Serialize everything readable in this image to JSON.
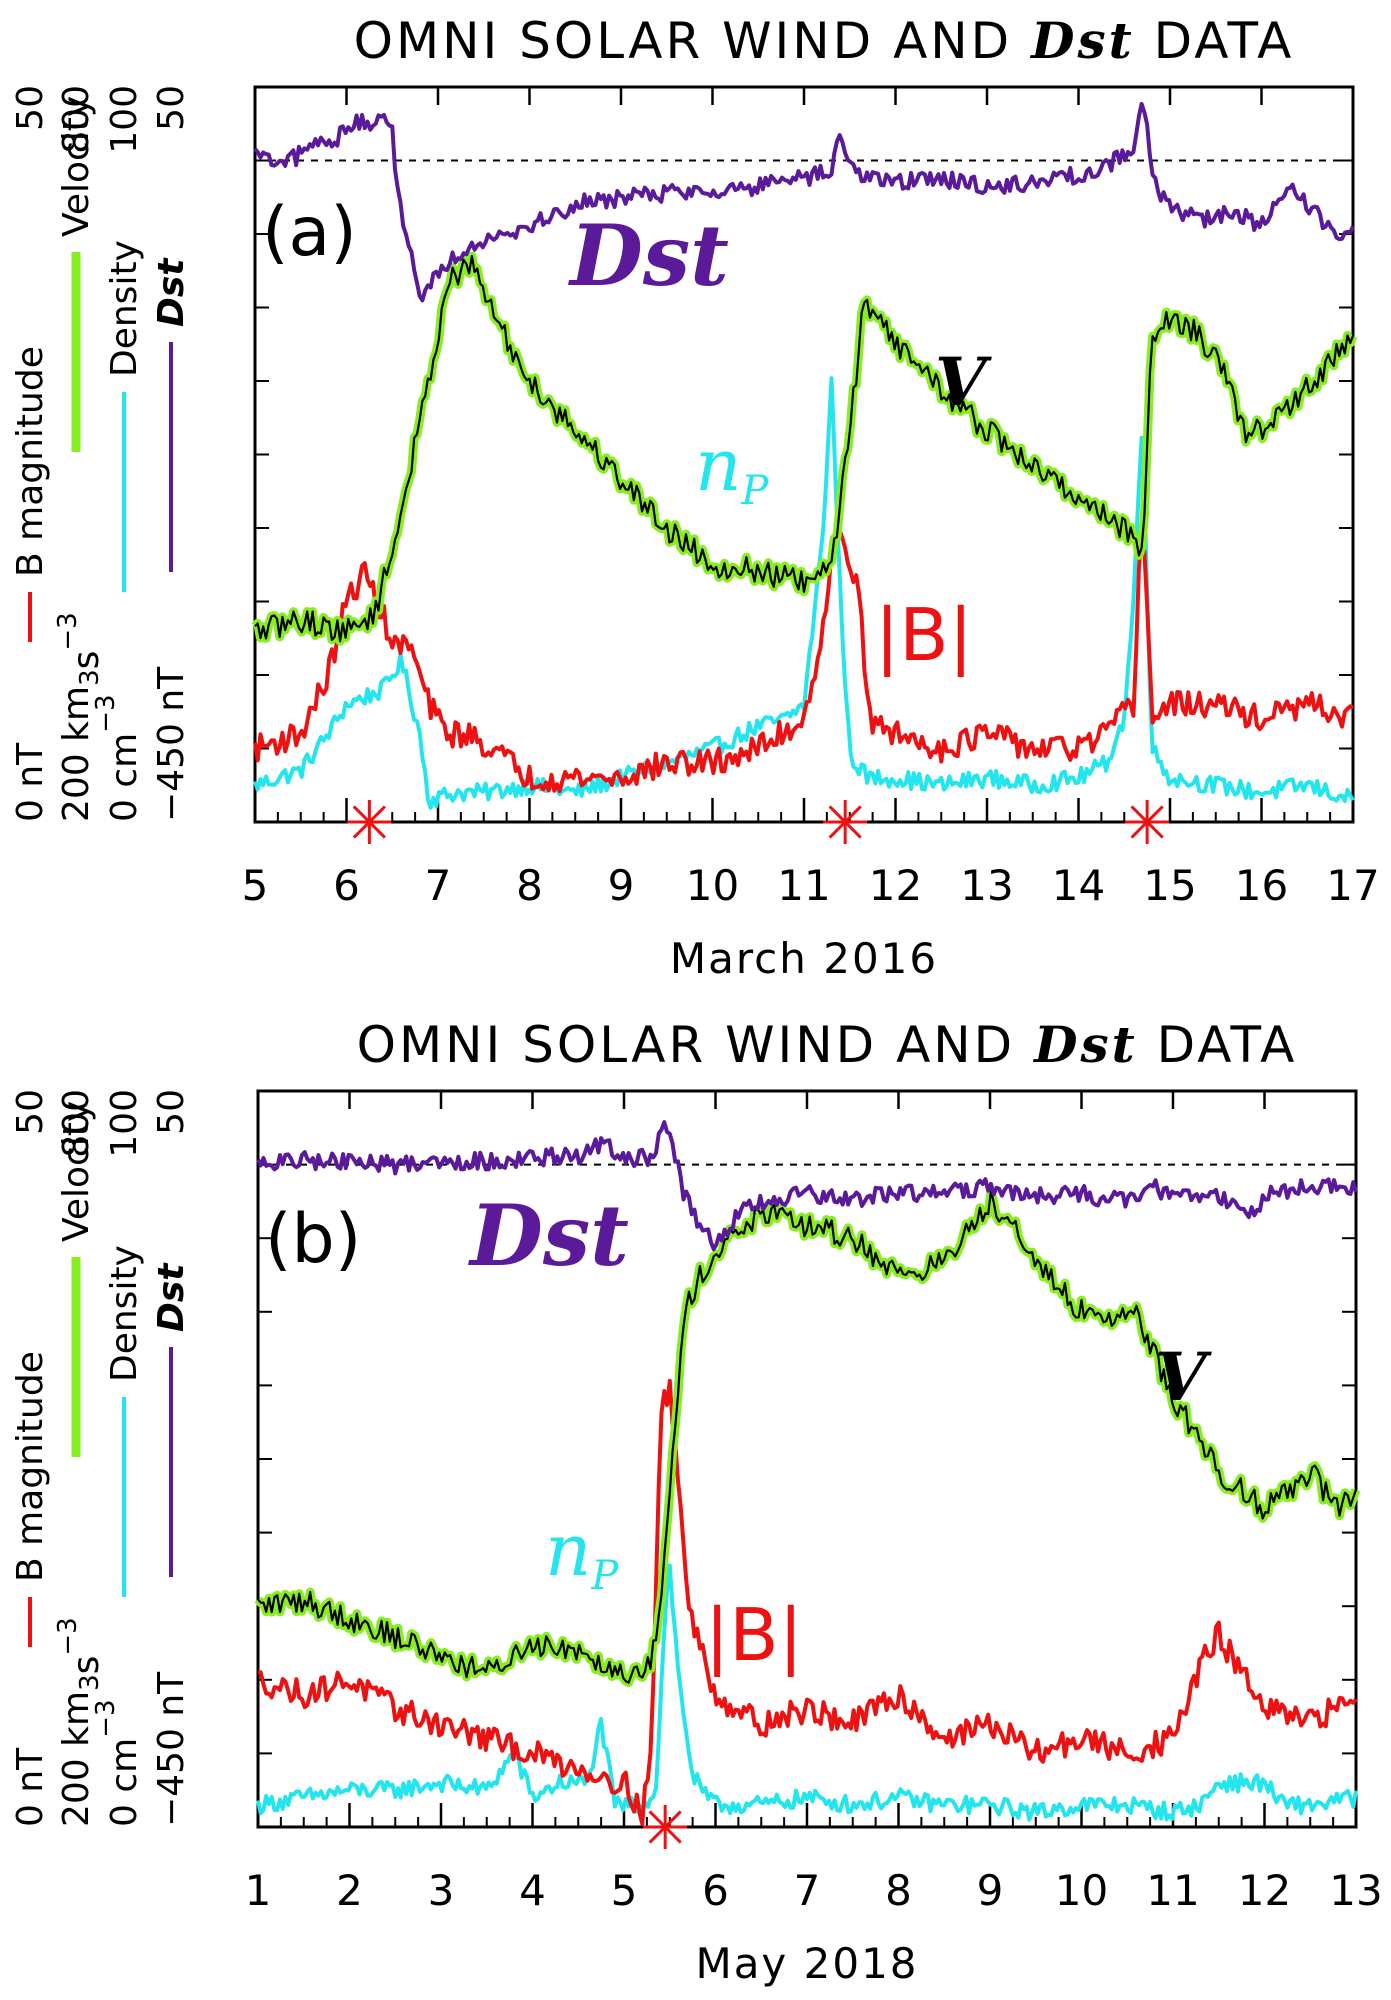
{
  "chart_data": [
    {
      "type": "line",
      "panel_label": "(a)",
      "title_parts": [
        "OMNI SOLAR WIND AND ",
        "Dst",
        " DATA"
      ],
      "xlabel": "March 2016",
      "xlim": [
        5,
        17
      ],
      "x_ticks": [
        "5",
        "6",
        "7",
        "8",
        "9",
        "10",
        "11",
        "12",
        "13",
        "14",
        "15",
        "16",
        "17"
      ],
      "axes": [
        {
          "name": "B magnitude",
          "unit": "nT",
          "bottom": "0",
          "top": "50",
          "range": [
            0,
            50
          ],
          "color": "#ee1111"
        },
        {
          "name": "Velocity",
          "unit": "km s-3",
          "unit_main": "km",
          "unit_sub": "3",
          "unit_mid": "s",
          "unit_sup": "−3",
          "bottom": "200",
          "top": "800",
          "range": [
            200,
            800
          ],
          "color": "#88ee22"
        },
        {
          "name": "Density",
          "unit": "cm-3",
          "bottom": "0",
          "top": "100",
          "range": [
            0,
            100
          ],
          "color": "#22e5ee"
        },
        {
          "name": "Dst",
          "unit": "nT",
          "bottom": "−450",
          "top": "50",
          "range": [
            -450,
            50
          ],
          "color": "#5a1a9a"
        }
      ],
      "dst_zero_line": 0,
      "labels": {
        "dst": "Dst",
        "v": "V",
        "np": "n",
        "np_sub": "P",
        "b": "|B|"
      },
      "shock_markers": [
        6.25,
        11.45,
        14.75
      ],
      "series": [
        {
          "name": "Dst",
          "unit": "nT",
          "color": "#5a1a9a",
          "x": [
            5.0,
            5.3,
            5.6,
            5.9,
            6.0,
            6.2,
            6.5,
            6.55,
            6.7,
            6.8,
            7.0,
            7.3,
            7.6,
            8.0,
            8.5,
            9.0,
            9.5,
            10.0,
            10.5,
            11.0,
            11.3,
            11.4,
            11.5,
            11.7,
            12.0,
            12.5,
            13.0,
            13.5,
            14.0,
            14.3,
            14.6,
            14.7,
            14.8,
            14.9,
            15.0,
            15.3,
            15.7,
            16.0,
            16.3,
            16.6,
            16.8,
            17.0
          ],
          "y": [
            5,
            -5,
            10,
            15,
            25,
            25,
            25,
            -20,
            -60,
            -95,
            -75,
            -60,
            -50,
            -45,
            -30,
            -25,
            -22,
            -20,
            -18,
            -12,
            -8,
            20,
            -5,
            -10,
            -15,
            -12,
            -18,
            -15,
            -10,
            -5,
            10,
            45,
            -5,
            -25,
            -30,
            -40,
            -35,
            -45,
            -20,
            -35,
            -50,
            -48
          ]
        },
        {
          "name": "V",
          "unit": "km s-3",
          "color": "#88ee22",
          "x": [
            5.0,
            5.5,
            6.0,
            6.3,
            6.5,
            6.7,
            6.9,
            7.1,
            7.35,
            7.5,
            7.7,
            8.0,
            8.5,
            9.0,
            9.5,
            10.0,
            10.5,
            11.0,
            11.2,
            11.35,
            11.5,
            11.65,
            11.8,
            12.0,
            12.3,
            12.6,
            13.0,
            13.5,
            14.0,
            14.5,
            14.7,
            14.8,
            15.0,
            15.3,
            15.6,
            15.8,
            16.0,
            16.3,
            16.6,
            16.8,
            17.0
          ],
          "y": [
            355,
            365,
            355,
            370,
            420,
            490,
            560,
            640,
            655,
            635,
            600,
            560,
            520,
            480,
            440,
            410,
            405,
            395,
            400,
            430,
            520,
            620,
            620,
            590,
            570,
            545,
            520,
            490,
            465,
            440,
            420,
            600,
            610,
            600,
            565,
            520,
            520,
            540,
            560,
            580,
            600
          ]
        },
        {
          "name": "np",
          "unit": "cm-3",
          "color": "#22e5ee",
          "x": [
            5.0,
            5.5,
            5.8,
            6.0,
            6.2,
            6.4,
            6.6,
            6.8,
            6.9,
            7.2,
            7.5,
            8.0,
            8.5,
            9.0,
            9.5,
            10.0,
            10.5,
            10.8,
            11.0,
            11.2,
            11.3,
            11.4,
            11.5,
            11.7,
            12.0,
            12.5,
            13.0,
            13.5,
            14.0,
            14.3,
            14.5,
            14.6,
            14.7,
            14.8,
            15.0,
            15.5,
            16.0,
            16.5,
            17.0
          ],
          "y": [
            5,
            7,
            12,
            16,
            17,
            18,
            22,
            12,
            3,
            4,
            4,
            5,
            4,
            6,
            8,
            10,
            13,
            14,
            16,
            38,
            60,
            30,
            9,
            6,
            6,
            5,
            6,
            5,
            6,
            8,
            14,
            30,
            55,
            10,
            6,
            5,
            4,
            5,
            3
          ]
        },
        {
          "name": "|B|",
          "unit": "nT",
          "color": "#ee1111",
          "x": [
            5.0,
            5.5,
            5.8,
            6.0,
            6.2,
            6.4,
            6.5,
            6.7,
            6.9,
            7.1,
            7.3,
            7.6,
            8.0,
            8.5,
            9.0,
            9.5,
            10.0,
            10.5,
            11.0,
            11.2,
            11.35,
            11.5,
            11.6,
            11.7,
            12.0,
            12.5,
            13.0,
            13.5,
            14.0,
            14.3,
            14.6,
            14.7,
            14.8,
            15.0,
            15.5,
            16.0,
            16.5,
            17.0
          ],
          "y": [
            5,
            6,
            10,
            15,
            17,
            14,
            12,
            12,
            8,
            6,
            6,
            5,
            3,
            3,
            3,
            4,
            4,
            5,
            7,
            13,
            20,
            18,
            16,
            7,
            6,
            5,
            6,
            5,
            5,
            6,
            8,
            22,
            7,
            8,
            8,
            7,
            8,
            7
          ]
        }
      ]
    },
    {
      "type": "line",
      "panel_label": "(b)",
      "title_parts": [
        "OMNI SOLAR WIND AND ",
        "Dst",
        " DATA"
      ],
      "xlabel": "May 2018",
      "xlim": [
        1,
        13
      ],
      "x_ticks": [
        "1",
        "2",
        "3",
        "4",
        "5",
        "6",
        "7",
        "8",
        "9",
        "10",
        "11",
        "12",
        "13"
      ],
      "axes": [
        {
          "name": "B magnitude",
          "unit": "nT",
          "bottom": "0",
          "top": "50",
          "range": [
            0,
            50
          ],
          "color": "#ee1111"
        },
        {
          "name": "Velocity",
          "unit": "km s-3",
          "unit_main": "km",
          "unit_sub": "3",
          "unit_mid": "s",
          "unit_sup": "−3",
          "bottom": "200",
          "top": "800",
          "range": [
            200,
            800
          ],
          "color": "#88ee22"
        },
        {
          "name": "Density",
          "unit": "cm-3",
          "bottom": "0",
          "top": "100",
          "range": [
            0,
            100
          ],
          "color": "#22e5ee"
        },
        {
          "name": "Dst",
          "unit": "nT",
          "bottom": "−450",
          "top": "50",
          "range": [
            -450,
            50
          ],
          "color": "#5a1a9a"
        }
      ],
      "dst_zero_line": 0,
      "labels": {
        "dst": "Dst",
        "v": "V",
        "np": "n",
        "np_sub": "P",
        "b": "|B|"
      },
      "shock_markers": [
        5.45
      ],
      "series": [
        {
          "name": "Dst",
          "unit": "nT",
          "color": "#5a1a9a",
          "x": [
            1.0,
            1.5,
            2.0,
            2.5,
            3.0,
            3.5,
            4.0,
            4.5,
            4.75,
            5.0,
            5.3,
            5.45,
            5.55,
            5.65,
            5.8,
            6.0,
            6.3,
            6.6,
            7.0,
            7.5,
            8.0,
            8.5,
            9.0,
            9.5,
            10.0,
            10.5,
            10.8,
            11.0,
            11.5,
            11.9,
            12.0,
            12.5,
            13.0
          ],
          "y": [
            0,
            3,
            2,
            0,
            3,
            2,
            5,
            5,
            15,
            3,
            5,
            30,
            10,
            -20,
            -40,
            -55,
            -30,
            -25,
            -20,
            -25,
            -18,
            -20,
            -15,
            -22,
            -20,
            -25,
            -15,
            -22,
            -20,
            -35,
            -20,
            -15,
            -15
          ]
        },
        {
          "name": "V",
          "unit": "km s-3",
          "color": "#88ee22",
          "x": [
            1.0,
            1.5,
            2.0,
            2.5,
            3.0,
            3.5,
            4.0,
            4.5,
            5.0,
            5.3,
            5.4,
            5.5,
            5.6,
            5.7,
            6.0,
            6.5,
            7.0,
            7.5,
            8.0,
            8.5,
            9.0,
            9.3,
            9.6,
            10.0,
            10.3,
            10.6,
            11.0,
            11.5,
            12.0,
            12.5,
            12.8,
            13.0
          ],
          "y": [
            380,
            385,
            370,
            355,
            340,
            325,
            350,
            345,
            325,
            335,
            380,
            470,
            570,
            630,
            670,
            700,
            690,
            680,
            650,
            660,
            710,
            690,
            650,
            620,
            615,
            620,
            550,
            490,
            460,
            490,
            460,
            470
          ]
        },
        {
          "name": "np",
          "unit": "cm-3",
          "color": "#22e5ee",
          "x": [
            1.0,
            1.5,
            2.0,
            2.5,
            3.0,
            3.5,
            3.8,
            4.0,
            4.3,
            4.6,
            4.75,
            4.9,
            5.2,
            5.35,
            5.45,
            5.5,
            5.6,
            5.75,
            5.9,
            6.0,
            6.5,
            7.0,
            7.5,
            8.0,
            8.5,
            9.0,
            9.5,
            10.0,
            10.5,
            11.0,
            11.3,
            11.5,
            12.0,
            12.2,
            12.5,
            13.0
          ],
          "y": [
            3,
            4,
            5,
            5,
            6,
            5,
            10,
            4,
            6,
            6,
            14,
            3,
            3,
            5,
            30,
            35,
            20,
            7,
            4,
            3,
            3,
            4,
            3,
            4,
            3,
            3,
            2,
            3,
            3,
            2,
            3,
            6,
            6,
            3,
            3,
            4
          ]
        },
        {
          "name": "|B|",
          "unit": "nT",
          "color": "#ee1111",
          "x": [
            1.0,
            1.5,
            2.0,
            2.5,
            3.0,
            3.5,
            4.0,
            4.5,
            5.0,
            5.2,
            5.3,
            5.4,
            5.5,
            5.55,
            5.7,
            6.0,
            6.5,
            7.0,
            7.5,
            8.0,
            8.5,
            9.0,
            9.5,
            10.0,
            10.5,
            11.0,
            11.3,
            11.5,
            12.0,
            12.5,
            13.0
          ],
          "y": [
            10,
            9,
            10,
            8,
            7,
            6,
            5,
            4,
            3,
            1,
            5,
            28,
            30,
            27,
            15,
            9,
            7,
            8,
            7,
            9,
            6,
            7,
            5,
            6,
            5,
            6,
            11,
            13,
            8,
            7,
            9
          ]
        }
      ]
    }
  ]
}
